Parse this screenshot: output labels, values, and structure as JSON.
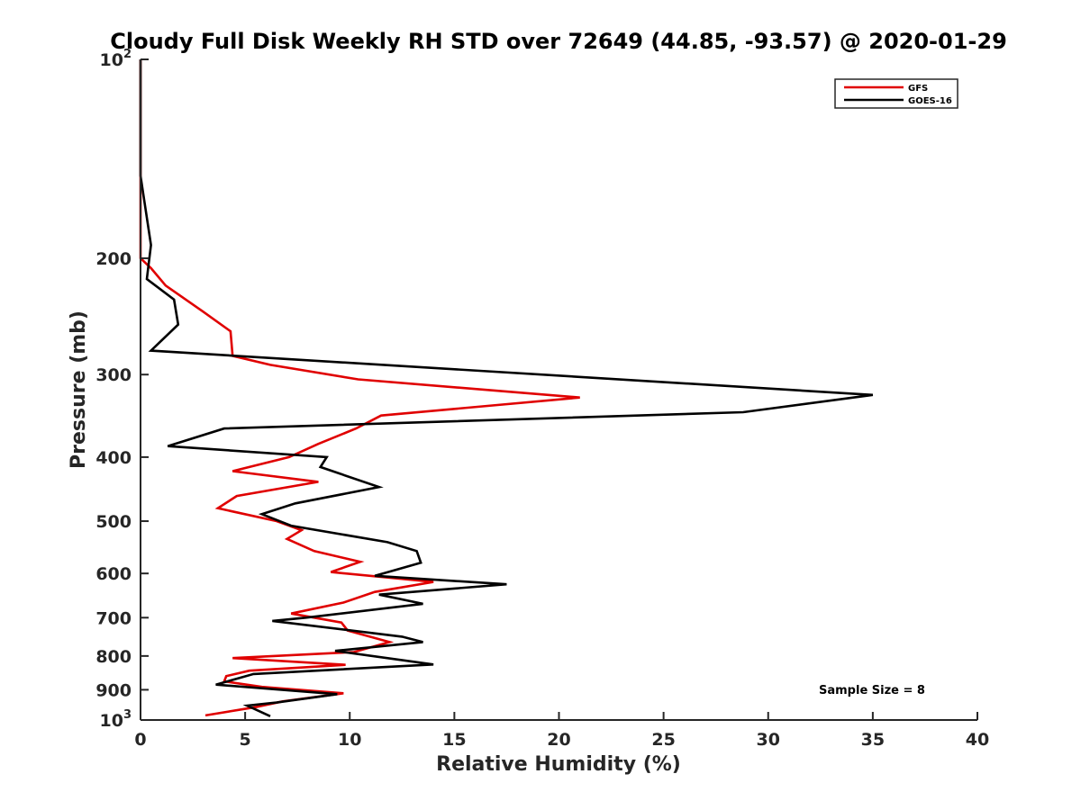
{
  "chart_data": {
    "type": "line",
    "title": "Cloudy Full Disk Weekly RH STD over 72649 (44.85, -93.57) @ 2020-01-29",
    "xlabel": "Relative Humidity (%)",
    "ylabel": "Pressure (mb)",
    "xlim": [
      0,
      40
    ],
    "ylim": [
      100,
      1000
    ],
    "y_scale": "log",
    "y_reversed": true,
    "x_ticks": [
      0,
      5,
      10,
      15,
      20,
      25,
      30,
      35,
      40
    ],
    "x_tick_labels": [
      "0",
      "5",
      "10",
      "15",
      "20",
      "25",
      "30",
      "35",
      "40"
    ],
    "y_ticks": [
      {
        "value": 100,
        "base": "10",
        "exp": "2"
      },
      {
        "value": 200,
        "base": "200",
        "exp": ""
      },
      {
        "value": 300,
        "base": "300",
        "exp": ""
      },
      {
        "value": 400,
        "base": "400",
        "exp": ""
      },
      {
        "value": 500,
        "base": "500",
        "exp": ""
      },
      {
        "value": 600,
        "base": "600",
        "exp": ""
      },
      {
        "value": 700,
        "base": "700",
        "exp": ""
      },
      {
        "value": 800,
        "base": "800",
        "exp": ""
      },
      {
        "value": 900,
        "base": "900",
        "exp": ""
      },
      {
        "value": 1000,
        "base": "10",
        "exp": "3"
      }
    ],
    "grid": false,
    "legend_position": "top-right",
    "annotation": "Sample Size = 8",
    "series": [
      {
        "name": "GFS",
        "color": "#e00000",
        "points": [
          [
            0,
            100
          ],
          [
            0,
            150
          ],
          [
            0,
            200
          ],
          [
            0.5,
            207
          ],
          [
            1.2,
            220
          ],
          [
            3.0,
            241
          ],
          [
            4.3,
            258
          ],
          [
            4.4,
            281
          ],
          [
            6.2,
            290
          ],
          [
            10.4,
            305
          ],
          [
            21.0,
            325
          ],
          [
            11.5,
            346
          ],
          [
            10.3,
            362
          ],
          [
            8.5,
            382
          ],
          [
            7.1,
            400
          ],
          [
            4.4,
            420
          ],
          [
            8.5,
            436
          ],
          [
            4.6,
            458
          ],
          [
            3.7,
            478
          ],
          [
            6.5,
            500
          ],
          [
            7.7,
            516
          ],
          [
            7.0,
            532
          ],
          [
            8.3,
            555
          ],
          [
            10.5,
            576
          ],
          [
            9.1,
            597
          ],
          [
            14.0,
            618
          ],
          [
            11.2,
            640
          ],
          [
            9.7,
            664
          ],
          [
            7.2,
            690
          ],
          [
            9.6,
            712
          ],
          [
            9.9,
            732
          ],
          [
            11.9,
            762
          ],
          [
            10.2,
            789
          ],
          [
            4.4,
            806
          ],
          [
            9.8,
            825
          ],
          [
            5.2,
            842
          ],
          [
            4.1,
            858
          ],
          [
            4.0,
            874
          ],
          [
            5.8,
            891
          ],
          [
            9.7,
            911
          ],
          [
            6.8,
            937
          ],
          [
            5.5,
            956
          ],
          [
            3.1,
            984
          ]
        ]
      },
      {
        "name": "GOES-16",
        "color": "#000000",
        "points": [
          [
            0,
            100
          ],
          [
            0,
            150
          ],
          [
            0.5,
            191
          ],
          [
            0.3,
            215
          ],
          [
            1.6,
            231
          ],
          [
            1.8,
            252
          ],
          [
            0.5,
            276
          ],
          [
            35.0,
            322
          ],
          [
            28.8,
            342
          ],
          [
            4.0,
            362
          ],
          [
            1.3,
            385
          ],
          [
            8.9,
            400
          ],
          [
            8.6,
            414
          ],
          [
            11.4,
            444
          ],
          [
            7.4,
            470
          ],
          [
            5.8,
            488
          ],
          [
            7.2,
            508
          ],
          [
            11.8,
            538
          ],
          [
            13.2,
            555
          ],
          [
            13.4,
            578
          ],
          [
            11.2,
            605
          ],
          [
            17.5,
            623
          ],
          [
            11.4,
            646
          ],
          [
            13.5,
            667
          ],
          [
            7.9,
            700
          ],
          [
            6.3,
            708
          ],
          [
            12.5,
            748
          ],
          [
            13.5,
            762
          ],
          [
            9.3,
            786
          ],
          [
            14.0,
            824
          ],
          [
            5.4,
            852
          ],
          [
            3.6,
            884
          ],
          [
            9.4,
            914
          ],
          [
            6.5,
            941
          ],
          [
            5.1,
            951
          ],
          [
            6.2,
            987
          ]
        ]
      }
    ]
  }
}
